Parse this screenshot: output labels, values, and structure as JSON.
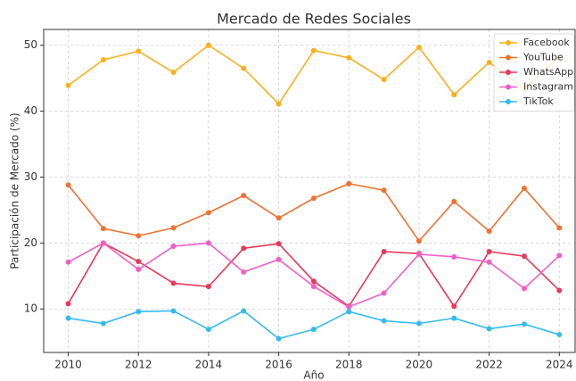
{
  "chart_data": {
    "type": "line",
    "title": "Mercado de Redes Sociales",
    "x_label": "Año",
    "y_label": "Participación de Mercado (%)",
    "x": [
      2010,
      2011,
      2012,
      2013,
      2014,
      2015,
      2016,
      2017,
      2018,
      2019,
      2020,
      2021,
      2022,
      2023,
      2024
    ],
    "series": [
      {
        "name": "Facebook",
        "color": "#f9b11c",
        "values": [
          43.9,
          47.8,
          49.1,
          45.9,
          50.0,
          46.5,
          41.1,
          49.2,
          48.1,
          44.8,
          49.7,
          42.5,
          47.4,
          43.4,
          48.3
        ]
      },
      {
        "name": "YouTube",
        "color": "#ee7231",
        "values": [
          28.8,
          22.2,
          21.1,
          22.3,
          24.6,
          27.2,
          23.8,
          26.8,
          29.0,
          28.0,
          20.3,
          26.3,
          21.8,
          28.3,
          22.3
        ]
      },
      {
        "name": "WhatsApp",
        "color": "#e8385a",
        "values": [
          10.8,
          20.0,
          17.2,
          13.9,
          13.4,
          19.2,
          19.9,
          14.2,
          10.4,
          18.7,
          18.4,
          10.4,
          18.7,
          18.0,
          12.8
        ]
      },
      {
        "name": "Instagram",
        "color": "#f25ec6",
        "values": [
          17.1,
          20.0,
          16.0,
          19.5,
          20.0,
          15.6,
          17.5,
          13.4,
          10.3,
          12.4,
          18.3,
          17.9,
          17.1,
          13.1,
          18.1
        ]
      },
      {
        "name": "TikTok",
        "color": "#35bbef",
        "values": [
          8.6,
          7.8,
          9.6,
          9.7,
          6.9,
          9.7,
          5.5,
          6.9,
          9.6,
          8.2,
          7.8,
          8.6,
          7.0,
          7.7,
          6.1
        ]
      }
    ],
    "xlim": [
      2009.3,
      2024.45
    ],
    "xticks": [
      2010,
      2012,
      2014,
      2016,
      2018,
      2020,
      2022,
      2024
    ],
    "ylim": [
      3.4,
      52.4
    ],
    "yticks": [
      10,
      20,
      30,
      40,
      50
    ],
    "grid": true,
    "legend": "upper right"
  }
}
